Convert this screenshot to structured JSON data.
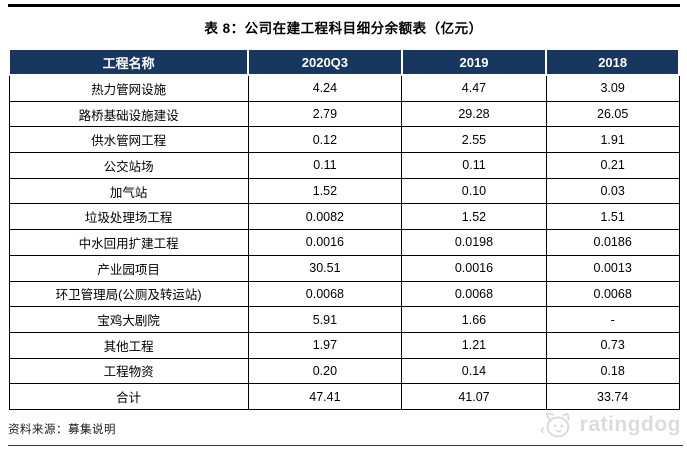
{
  "title": "表 8：公司在建工程科目细分余额表（亿元）",
  "table": {
    "columns": [
      "工程名称",
      "2020Q3",
      "2019",
      "2018"
    ],
    "rows": [
      [
        "热力管网设施",
        "4.24",
        "4.47",
        "3.09"
      ],
      [
        "路桥基础设施建设",
        "2.79",
        "29.28",
        "26.05"
      ],
      [
        "供水管网工程",
        "0.12",
        "2.55",
        "1.91"
      ],
      [
        "公交站场",
        "0.11",
        "0.11",
        "0.21"
      ],
      [
        "加气站",
        "1.52",
        "0.10",
        "0.03"
      ],
      [
        "垃圾处理场工程",
        "0.0082",
        "1.52",
        "1.51"
      ],
      [
        "中水回用扩建工程",
        "0.0016",
        "0.0198",
        "0.0186"
      ],
      [
        "产业园项目",
        "30.51",
        "0.0016",
        "0.0013"
      ],
      [
        "环卫管理局(公厕及转运站)",
        "0.0068",
        "0.0068",
        "0.0068"
      ],
      [
        "宝鸡大剧院",
        "5.91",
        "1.66",
        "-"
      ],
      [
        "其他工程",
        "1.97",
        "1.21",
        "0.73"
      ],
      [
        "工程物资",
        "0.20",
        "0.14",
        "0.18"
      ],
      [
        "合计",
        "47.41",
        "41.07",
        "33.74"
      ]
    ]
  },
  "footer": {
    "source_label": "资料来源：募集说明",
    "brand": "ratingdog",
    "brand_icon": "dog-face-icon"
  },
  "colors": {
    "header_bg": "#17375e",
    "header_text": "#ffffff",
    "border": "#000000",
    "watermark": "#dcdcdc",
    "rule": "#000000"
  }
}
